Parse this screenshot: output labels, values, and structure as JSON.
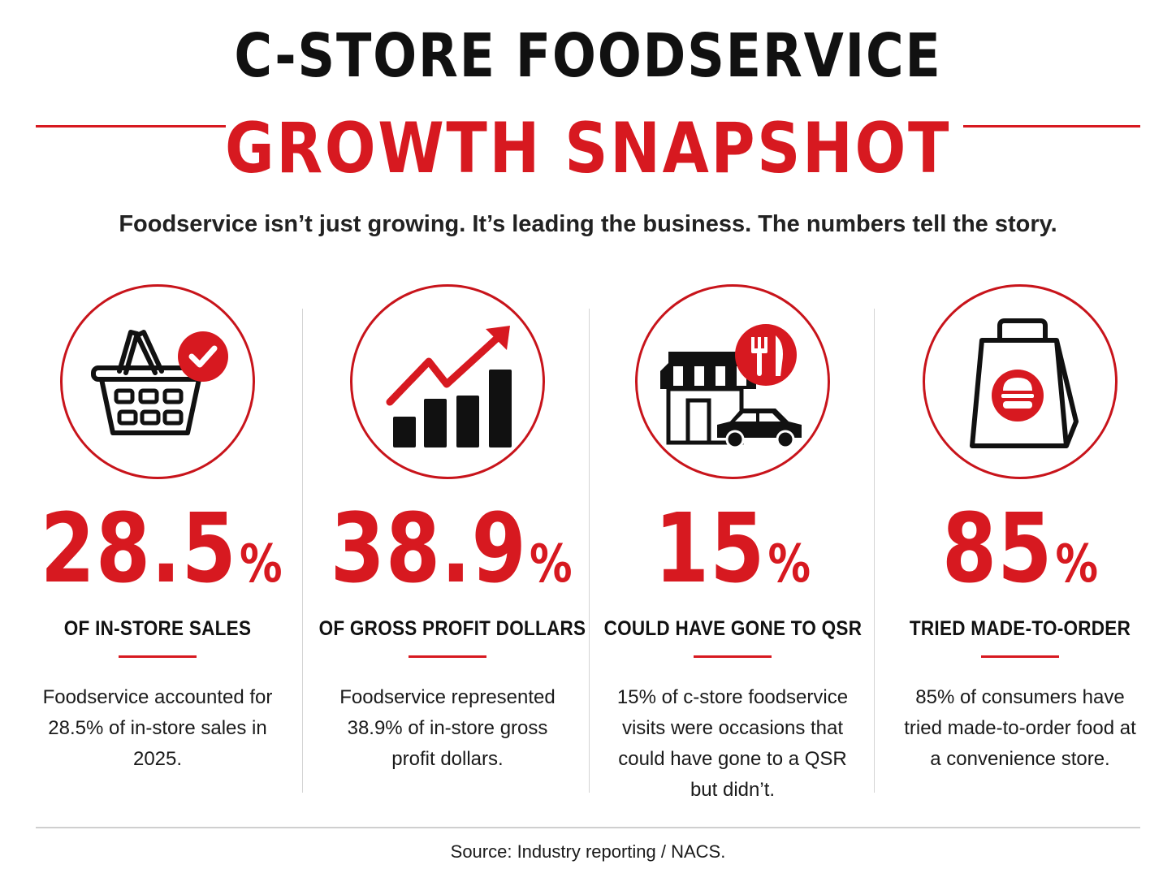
{
  "header": {
    "title_line1": "C-STORE FOODSERVICE",
    "title_line2": "GROWTH SNAPSHOT",
    "subtitle": "Foodservice isn’t just growing. It’s leading the business. The numbers tell the story."
  },
  "colors": {
    "accent": "#d71920",
    "text": "#111111",
    "divider": "#d4d4d4"
  },
  "stats": [
    {
      "icon": "shopping-basket-check-icon",
      "value": "28.5",
      "unit": "%",
      "label": "OF IN-STORE SALES",
      "description": "Foodservice accounted for 28.5% of in-store sales in 2025."
    },
    {
      "icon": "growth-chart-icon",
      "value": "38.9",
      "unit": "%",
      "label": "OF GROSS PROFIT DOLLARS",
      "description": "Foodservice represented 38.9% of in-store gross profit dollars."
    },
    {
      "icon": "storefront-car-icon",
      "value": "15",
      "unit": "%",
      "label": "COULD HAVE GONE TO QSR",
      "description": "15% of c-store foodservice visits were occasions that could have gone to a QSR but didn’t."
    },
    {
      "icon": "takeout-bag-burger-icon",
      "value": "85",
      "unit": "%",
      "label": "TRIED MADE-TO-ORDER",
      "description": "85% of consumers have tried made-to-order food at a convenience store."
    }
  ],
  "footer": {
    "source": "Source: Industry reporting / NACS."
  }
}
